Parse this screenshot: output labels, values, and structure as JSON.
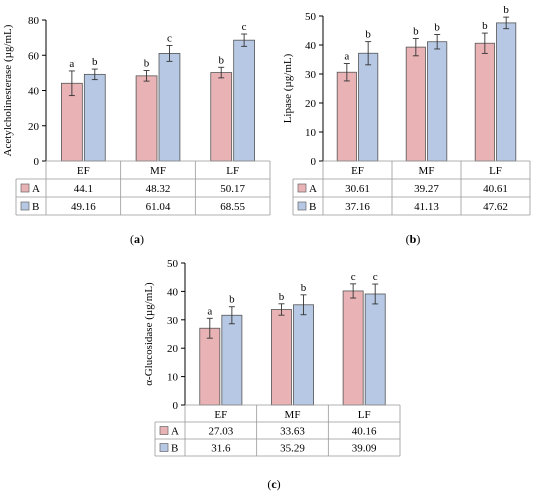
{
  "chart_data": [
    {
      "type": "bar",
      "panel_label": "(a)",
      "ylabel": "Acetylcholinesterase (µg/mL)",
      "ylim": [
        0,
        80
      ],
      "yticks": [
        0,
        20,
        40,
        60,
        80
      ],
      "categories": [
        "EF",
        "MF",
        "LF"
      ],
      "series": [
        {
          "name": "A",
          "color": "#e9b3b6",
          "values": [
            44.1,
            48.32,
            50.17
          ],
          "errors": [
            7,
            3,
            3
          ],
          "letters": [
            "a",
            "b",
            "b"
          ]
        },
        {
          "name": "B",
          "color": "#b6c8e3",
          "values": [
            49.16,
            61.04,
            68.55
          ],
          "errors": [
            3,
            4.5,
            3.5
          ],
          "letters": [
            "b",
            "c",
            "c"
          ]
        }
      ],
      "table": [
        {
          "name": "A",
          "values": [
            "44.1",
            "48.32",
            "50.17"
          ]
        },
        {
          "name": "B",
          "values": [
            "49.16",
            "61.04",
            "68.55"
          ]
        }
      ]
    },
    {
      "type": "bar",
      "panel_label": "(b)",
      "ylabel": "Lipase (µg/mL)",
      "ylim": [
        0,
        50
      ],
      "yticks": [
        0,
        10,
        20,
        30,
        40,
        50
      ],
      "categories": [
        "EF",
        "MF",
        "LF"
      ],
      "series": [
        {
          "name": "A",
          "color": "#e9b3b6",
          "values": [
            30.61,
            39.27,
            40.61
          ],
          "errors": [
            3,
            3,
            3.5
          ],
          "letters": [
            "a",
            "b",
            "b"
          ]
        },
        {
          "name": "B",
          "color": "#b6c8e3",
          "values": [
            37.16,
            41.13,
            47.62
          ],
          "errors": [
            4,
            2.5,
            2
          ],
          "letters": [
            "b",
            "b",
            "b"
          ]
        }
      ],
      "table": [
        {
          "name": "A",
          "values": [
            "30.61",
            "39.27",
            "40.61"
          ]
        },
        {
          "name": "B",
          "values": [
            "37.16",
            "41.13",
            "47.62"
          ]
        }
      ]
    },
    {
      "type": "bar",
      "panel_label": "(c)",
      "ylabel": "α-Glucosidase (µg/mL)",
      "ylim": [
        0,
        50
      ],
      "yticks": [
        0,
        10,
        20,
        30,
        40,
        50
      ],
      "categories": [
        "EF",
        "MF",
        "LF"
      ],
      "series": [
        {
          "name": "A",
          "color": "#e9b3b6",
          "values": [
            27.03,
            33.63,
            40.16
          ],
          "errors": [
            3.5,
            2,
            2.5
          ],
          "letters": [
            "a",
            "b",
            "c"
          ]
        },
        {
          "name": "B",
          "color": "#b6c8e3",
          "values": [
            31.6,
            35.29,
            39.09
          ],
          "errors": [
            3,
            3.5,
            3.5
          ],
          "letters": [
            "b",
            "b",
            "c"
          ]
        }
      ],
      "table": [
        {
          "name": "A",
          "values": [
            "27.03",
            "33.63",
            "40.16"
          ]
        },
        {
          "name": "B",
          "values": [
            "31.6",
            "35.29",
            "39.09"
          ]
        }
      ]
    }
  ]
}
